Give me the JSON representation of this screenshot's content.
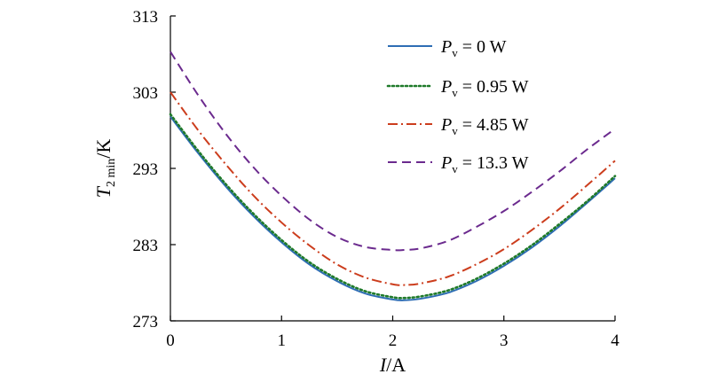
{
  "chart_data": {
    "type": "line",
    "xlabel": {
      "var": "I",
      "unit": "/A"
    },
    "ylabel": {
      "var": "T",
      "sub": "2 min",
      "unit": "/K"
    },
    "xlim": [
      0,
      4
    ],
    "ylim": [
      273,
      313
    ],
    "x_ticks": [
      0,
      1,
      2,
      3,
      4
    ],
    "y_ticks": [
      273,
      283,
      293,
      303,
      313
    ],
    "x_tick_labels": [
      "0",
      "1",
      "2",
      "3",
      "4"
    ],
    "y_tick_labels": [
      "273",
      "283",
      "293",
      "303",
      "313"
    ],
    "grid": false,
    "legend_position": "top-right",
    "x": [
      0,
      0.25,
      0.5,
      0.75,
      1,
      1.25,
      1.5,
      1.75,
      2,
      2.1,
      2.25,
      2.5,
      2.75,
      3,
      3.25,
      3.5,
      3.75,
      4
    ],
    "series": [
      {
        "name_var": "P",
        "name_sub": "v",
        "name_rest": " = 0 W",
        "color": "#2e6db4",
        "dash": "",
        "values": [
          299.8,
          295.0,
          290.6,
          286.7,
          283.3,
          280.4,
          278.2,
          276.6,
          275.8,
          275.7,
          275.9,
          276.7,
          278.2,
          280.2,
          282.6,
          285.4,
          288.5,
          291.7
        ]
      },
      {
        "name_var": "P",
        "name_sub": "v",
        "name_rest": " = 0.95 W",
        "color": "#1f7a2a",
        "dash": "2,3",
        "values": [
          300.1,
          295.3,
          290.9,
          287.0,
          283.6,
          280.7,
          278.5,
          276.9,
          276.1,
          276.0,
          276.2,
          277.0,
          278.5,
          280.5,
          282.9,
          285.7,
          288.7,
          292.0
        ]
      },
      {
        "name_var": "P",
        "name_sub": "v",
        "name_rest": " = 4.85 W",
        "color": "#cc3d1d",
        "dash": "11,4,2,4",
        "values": [
          303.0,
          298.0,
          293.5,
          289.4,
          285.9,
          282.9,
          280.4,
          278.7,
          277.8,
          277.7,
          277.9,
          278.8,
          280.4,
          282.4,
          284.9,
          287.7,
          290.8,
          294.0
        ]
      },
      {
        "name_var": "P",
        "name_sub": "v",
        "name_rest": " = 13.3 W",
        "color": "#6b2a8e",
        "dash": "10,6",
        "values": [
          308.3,
          302.6,
          297.5,
          293.1,
          289.4,
          286.3,
          284.0,
          282.7,
          282.3,
          282.3,
          282.5,
          283.5,
          285.3,
          287.4,
          289.9,
          292.6,
          295.5,
          298.2
        ]
      }
    ]
  }
}
